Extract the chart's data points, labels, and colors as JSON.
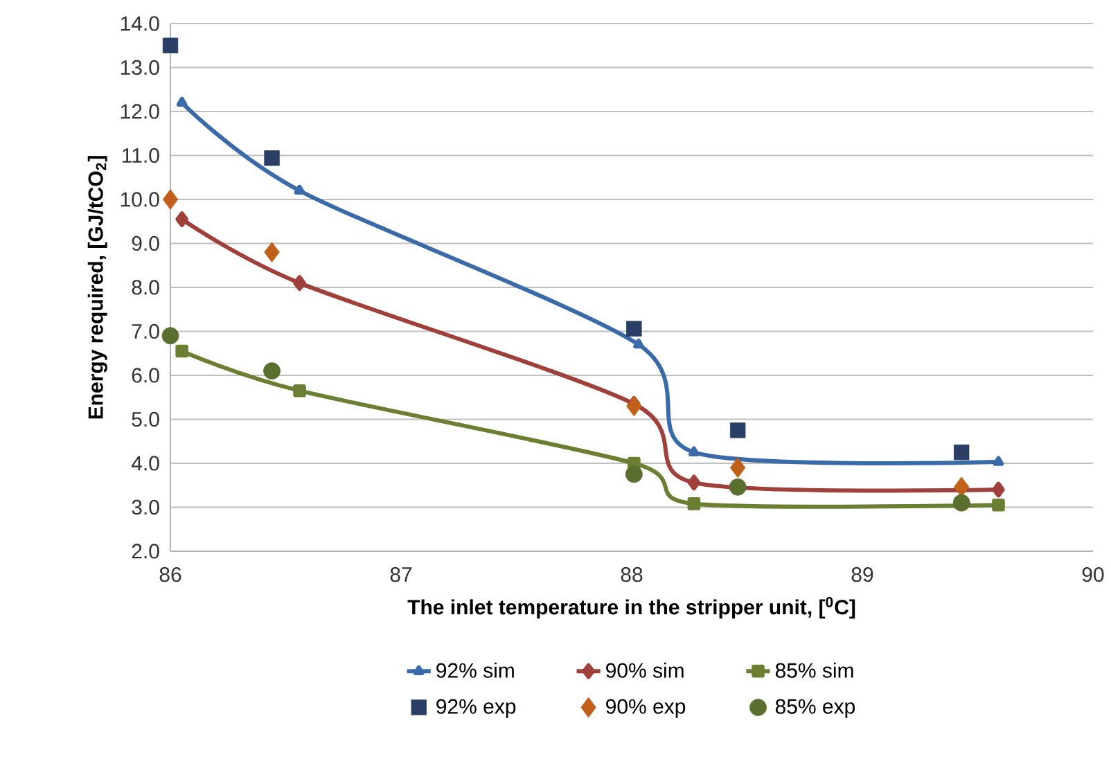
{
  "chart_data": {
    "type": "line",
    "xlabel": "The inlet temperature in the stripper unit, [$^{0}$C]",
    "ylabel": "Energy required, [GJ/tCO$_{2}$]",
    "xlim": [
      86,
      90
    ],
    "xticks": [
      86,
      87,
      88,
      89,
      90
    ],
    "ylim": [
      2,
      14
    ],
    "yticks": [
      {
        "value": 2,
        "label": "2.0"
      },
      {
        "value": 3,
        "label": "3.0"
      },
      {
        "value": 4,
        "label": "4.0"
      },
      {
        "value": 5,
        "label": "5.0"
      },
      {
        "value": 6,
        "label": "6.0"
      },
      {
        "value": 7,
        "label": "7.0"
      },
      {
        "value": 8,
        "label": "8.0"
      },
      {
        "value": 9,
        "label": "9.0"
      },
      {
        "value": 10,
        "label": "10.0"
      },
      {
        "value": 11,
        "label": "11.0"
      },
      {
        "value": 12,
        "label": "12.0"
      },
      {
        "value": 13,
        "label": "13.0"
      },
      {
        "value": 14,
        "label": "14.0"
      }
    ],
    "grid": "y",
    "legend": "bottom",
    "line_style": "solid",
    "series": [
      {
        "name": "92% sim",
        "marker": "triangle",
        "color": "#3a6aa8",
        "x": [
          86.05,
          86.56,
          88.03,
          88.27,
          89.59
        ],
        "values": [
          12.2,
          10.2,
          6.7,
          4.25,
          4.03
        ]
      },
      {
        "name": "90% sim",
        "marker": "diamond",
        "color": "#a0403a",
        "x": [
          86.05,
          86.56,
          88.01,
          88.27,
          89.59
        ],
        "values": [
          9.55,
          8.1,
          5.35,
          3.56,
          3.4
        ]
      },
      {
        "name": "85% sim",
        "marker": "square",
        "color": "#6b7f33",
        "x": [
          86.05,
          86.56,
          88.01,
          88.27,
          89.59
        ],
        "values": [
          6.55,
          5.65,
          4.0,
          3.08,
          3.05
        ]
      },
      {
        "name": "92% exp",
        "type": "scatter",
        "marker": "square",
        "color": "#2b3f66",
        "x": [
          86.0,
          86.44,
          88.01,
          88.46,
          89.43
        ],
        "values": [
          13.5,
          10.94,
          7.06,
          4.75,
          4.25
        ]
      },
      {
        "name": "90% exp",
        "type": "scatter",
        "marker": "diamond",
        "color": "#c0601a",
        "x": [
          86.0,
          86.44,
          88.01,
          88.46,
          89.43
        ],
        "values": [
          10.0,
          8.8,
          5.3,
          3.9,
          3.46
        ]
      },
      {
        "name": "85% exp",
        "type": "scatter",
        "marker": "circle",
        "color": "#5a6e2e",
        "x": [
          86.0,
          86.44,
          88.01,
          88.46,
          89.43
        ],
        "values": [
          6.9,
          6.1,
          3.75,
          3.46,
          3.1
        ]
      }
    ]
  }
}
